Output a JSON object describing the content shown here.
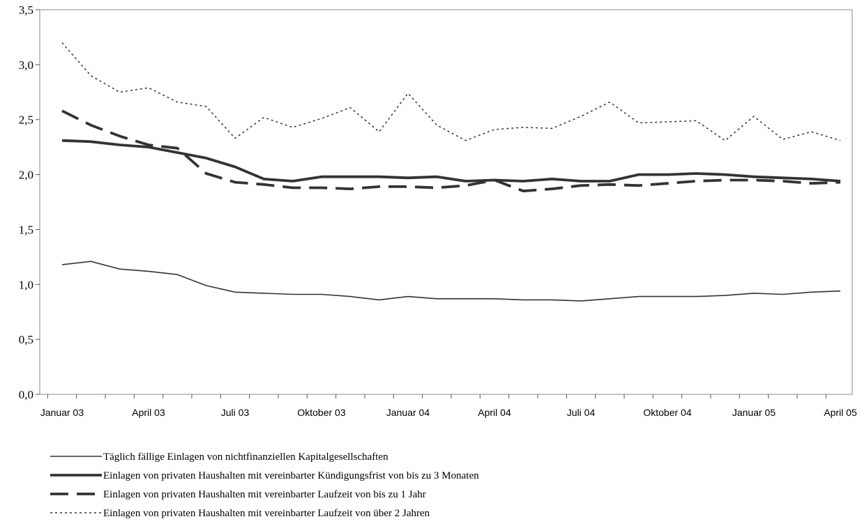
{
  "chart_data": {
    "type": "line",
    "title": "",
    "xlabel": "",
    "ylabel": "",
    "ylim": [
      0,
      3.5
    ],
    "y_ticks": [
      "0,0",
      "0,5",
      "1,0",
      "1,5",
      "2,0",
      "2,5",
      "3,0",
      "3,5"
    ],
    "x_tick_labels": [
      "Januar 03",
      "April 03",
      "Juli 03",
      "Oktober 03",
      "Januar 04",
      "April 04",
      "Juli 04",
      "Oktober 04",
      "Januar 05",
      "April 05"
    ],
    "x": [
      "2003-01",
      "2003-02",
      "2003-03",
      "2003-04",
      "2003-05",
      "2003-06",
      "2003-07",
      "2003-08",
      "2003-09",
      "2003-10",
      "2003-11",
      "2003-12",
      "2004-01",
      "2004-02",
      "2004-03",
      "2004-04",
      "2004-05",
      "2004-06",
      "2004-07",
      "2004-08",
      "2004-09",
      "2004-10",
      "2004-11",
      "2004-12",
      "2005-01",
      "2005-02",
      "2005-03",
      "2005-04"
    ],
    "grid": false,
    "legend_position": "bottom",
    "series": [
      {
        "name": "Täglich fällige Einlagen von nichtfinanziellen Kapitalgesellschaften",
        "style": "thin-solid",
        "values": [
          1.18,
          1.21,
          1.14,
          1.12,
          1.09,
          0.99,
          0.93,
          0.92,
          0.91,
          0.91,
          0.89,
          0.86,
          0.89,
          0.87,
          0.87,
          0.87,
          0.86,
          0.86,
          0.85,
          0.87,
          0.89,
          0.89,
          0.89,
          0.9,
          0.92,
          0.91,
          0.93,
          0.94
        ]
      },
      {
        "name": "Einlagen von privaten Haushalten mit vereinbarter Kündigungsfrist von bis zu 3 Monaten",
        "style": "thick-solid",
        "values": [
          2.31,
          2.3,
          2.27,
          2.25,
          2.2,
          2.15,
          2.07,
          1.96,
          1.94,
          1.98,
          1.98,
          1.98,
          1.97,
          1.98,
          1.94,
          1.95,
          1.94,
          1.96,
          1.94,
          1.94,
          2.0,
          2.0,
          2.01,
          2.0,
          1.98,
          1.97,
          1.96,
          1.94
        ]
      },
      {
        "name": "Einlagen von privaten Haushalten mit vereinbarter Laufzeit von bis zu 1 Jahr",
        "style": "thick-dashed",
        "values": [
          2.58,
          2.45,
          2.35,
          2.27,
          2.24,
          2.01,
          1.93,
          1.91,
          1.88,
          1.88,
          1.87,
          1.89,
          1.89,
          1.88,
          1.9,
          1.95,
          1.85,
          1.87,
          1.9,
          1.91,
          1.9,
          1.92,
          1.94,
          1.95,
          1.95,
          1.94,
          1.92,
          1.93
        ]
      },
      {
        "name": "Einlagen von privaten Haushalten mit vereinbarter Laufzeit von über 2 Jahren",
        "style": "dotted",
        "values": [
          3.2,
          2.9,
          2.75,
          2.79,
          2.66,
          2.62,
          2.33,
          2.52,
          2.43,
          2.51,
          2.61,
          2.39,
          2.74,
          2.45,
          2.31,
          2.41,
          2.43,
          2.42,
          2.53,
          2.66,
          2.47,
          2.48,
          2.49,
          2.31,
          2.53,
          2.32,
          2.39,
          2.31
        ]
      }
    ]
  }
}
